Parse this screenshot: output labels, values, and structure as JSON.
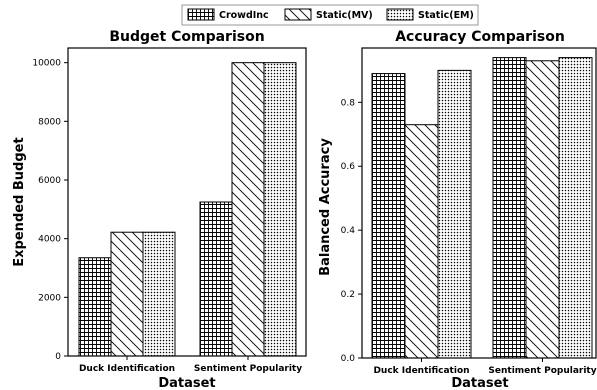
{
  "legend": [
    {
      "name": "CrowdInc",
      "pattern": "grid"
    },
    {
      "name": "Static(MV)",
      "pattern": "diagonal"
    },
    {
      "name": "Static(EM)",
      "pattern": "dots"
    }
  ],
  "chart_data": [
    {
      "type": "bar",
      "title": "Budget Comparison",
      "xlabel": "Dataset",
      "ylabel": "Expended Budget",
      "categories": [
        "Duck Identification",
        "Sentiment Popularity"
      ],
      "ylim": [
        0,
        10500
      ],
      "yticks": [
        0,
        2000,
        4000,
        6000,
        8000,
        10000
      ],
      "grid": false,
      "legend_position": "top-center",
      "series": [
        {
          "name": "CrowdInc",
          "values": [
            3350,
            5250
          ]
        },
        {
          "name": "Static(MV)",
          "values": [
            4220,
            10000
          ]
        },
        {
          "name": "Static(EM)",
          "values": [
            4220,
            10000
          ]
        }
      ]
    },
    {
      "type": "bar",
      "title": "Accuracy Comparison",
      "xlabel": "Dataset",
      "ylabel": "Balanced Accuracy",
      "categories": [
        "Duck Identification",
        "Sentiment Popularity"
      ],
      "ylim": [
        0,
        0.97
      ],
      "yticks": [
        "0.0",
        "0.2",
        "0.4",
        "0.6",
        "0.8"
      ],
      "grid": false,
      "legend_position": "top-center",
      "series": [
        {
          "name": "CrowdInc",
          "values": [
            0.89,
            0.94
          ]
        },
        {
          "name": "Static(MV)",
          "values": [
            0.73,
            0.93
          ]
        },
        {
          "name": "Static(EM)",
          "values": [
            0.9,
            0.94
          ]
        }
      ]
    }
  ]
}
